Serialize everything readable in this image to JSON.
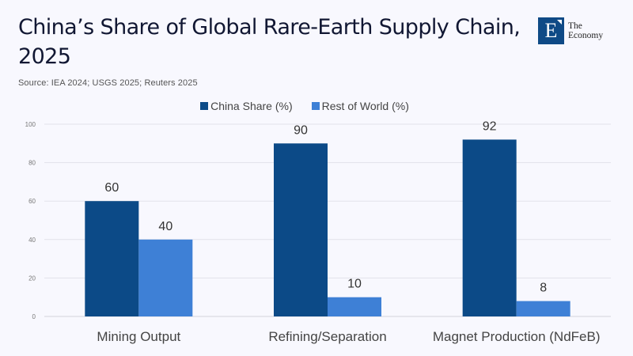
{
  "header": {
    "title": "China’s Share of Global Rare-Earth Supply Chain, 2025",
    "source": "Source:  IEA 2024; USGS 2025; Reuters 2025",
    "logo": {
      "letter": "E",
      "line1": "The",
      "line2": "Economy"
    }
  },
  "chart_data": {
    "type": "bar",
    "title": "China’s Share of Global Rare-Earth Supply Chain, 2025",
    "categories": [
      "Mining Output",
      "Refining/Separation",
      "Magnet Production (NdFeB)"
    ],
    "series": [
      {
        "name": "China Share (%)",
        "color": "#0c4a87",
        "values": [
          60,
          90,
          92
        ]
      },
      {
        "name": "Rest of World (%)",
        "color": "#3e80d6",
        "values": [
          40,
          10,
          8
        ]
      }
    ],
    "xlabel": "",
    "ylabel": "",
    "ylim": [
      0,
      100
    ],
    "yticks": [
      0,
      20,
      40,
      60,
      80,
      100
    ],
    "grid": true,
    "legend_position": "top-center",
    "data_labels": true
  }
}
